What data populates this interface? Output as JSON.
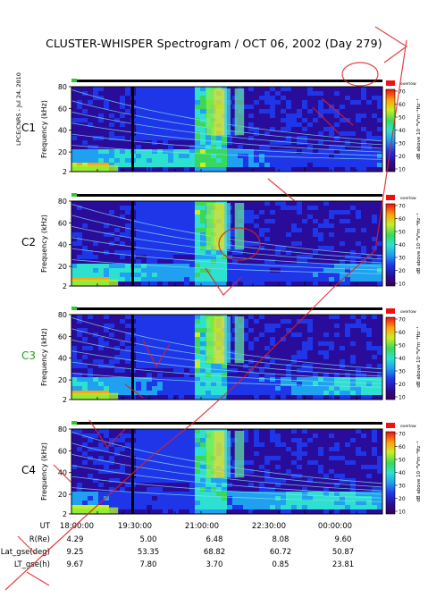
{
  "title": "CLUSTER-WHISPER Spectrogram / OCT 06, 2002 (Day 279)",
  "credit": "LPCE/CNRS - Jul 24, 2010",
  "colorbar": {
    "ticks": [
      "70",
      "60",
      "50",
      "40",
      "30",
      "20",
      "10"
    ],
    "label": "dB above 10⁻⁸V²m⁻²Hz⁻¹",
    "top_label": "overlow"
  },
  "chart_data": {
    "type": "heatmap",
    "ylabel": "Frequency (kHz)",
    "yticks": [
      2,
      20,
      40,
      60,
      80
    ],
    "ylim": [
      2,
      80
    ],
    "xlim": [
      "18:00:00",
      "00:00:00"
    ],
    "clim": [
      10,
      70
    ],
    "panels": [
      {
        "name": "C1",
        "label_color": "#000000"
      },
      {
        "name": "C2",
        "label_color": "#000000"
      },
      {
        "name": "C3",
        "label_color": "#19a319"
      },
      {
        "name": "C4",
        "label_color": "#000000"
      }
    ]
  },
  "ephemeris": {
    "rows": [
      {
        "label": "UT",
        "values": [
          "18:00:00",
          "19:30:00",
          "21:00:00",
          "22:30:00",
          "00:00:00"
        ]
      },
      {
        "label": "R(Re)",
        "values": [
          "4.29",
          "5.00",
          "6.48",
          "8.08",
          "9.60"
        ]
      },
      {
        "label": "Lat_gse(deg)",
        "values": [
          "9.25",
          "53.35",
          "68.82",
          "60.72",
          "50.87"
        ]
      },
      {
        "label": "LT_gse(h)",
        "values": [
          "9.67",
          "7.80",
          "3.70",
          "0.85",
          "23.81"
        ]
      }
    ]
  }
}
